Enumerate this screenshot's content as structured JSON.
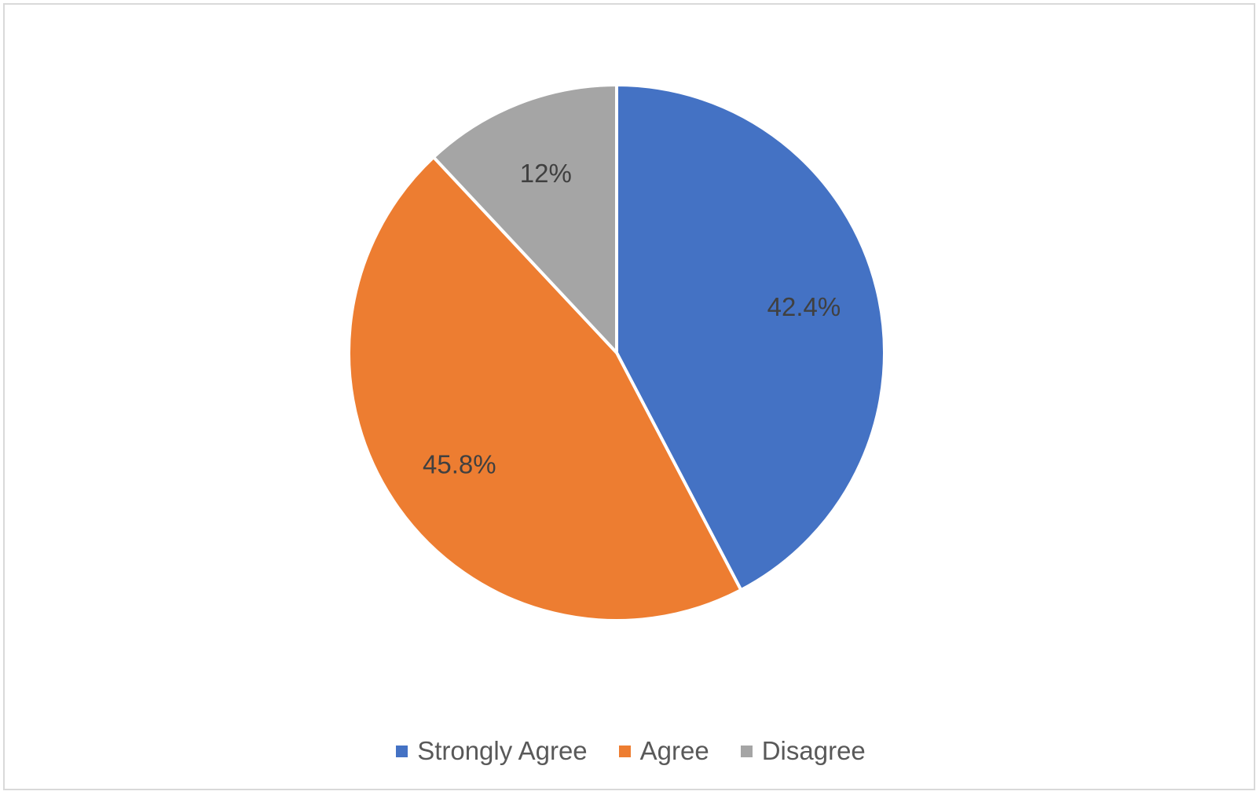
{
  "chart_data": {
    "type": "pie",
    "title": "",
    "categories": [
      "Strongly Agree",
      "Agree",
      "Disagree"
    ],
    "values": [
      42.4,
      45.8,
      12
    ],
    "labels": [
      "42.4%",
      "45.8%",
      "12%"
    ],
    "colors": [
      "#4472C4",
      "#ED7D31",
      "#A5A5A5"
    ],
    "legend_position": "bottom",
    "start_angle": "12 o'clock, clockwise"
  }
}
